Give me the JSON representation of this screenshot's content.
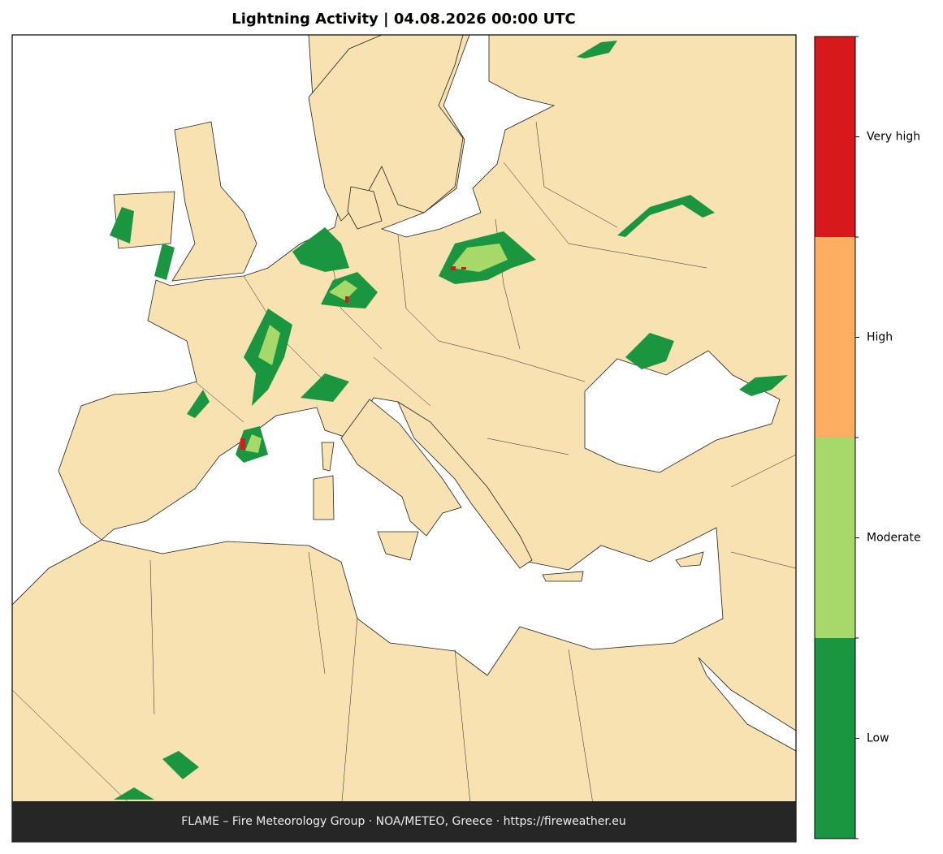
{
  "title": "Lightning Activity  |  04.08.2026 00:00 UTC",
  "footer": "FLAME – Fire Meteorology Group · NOA/METEO, Greece · https://fireweather.eu",
  "legend": {
    "levels": [
      {
        "label": "Low",
        "color": "#1a9641"
      },
      {
        "label": "Moderate",
        "color": "#a6d96a"
      },
      {
        "label": "High",
        "color": "#fdae61"
      },
      {
        "label": "Very high",
        "color": "#d7191c"
      }
    ]
  }
}
